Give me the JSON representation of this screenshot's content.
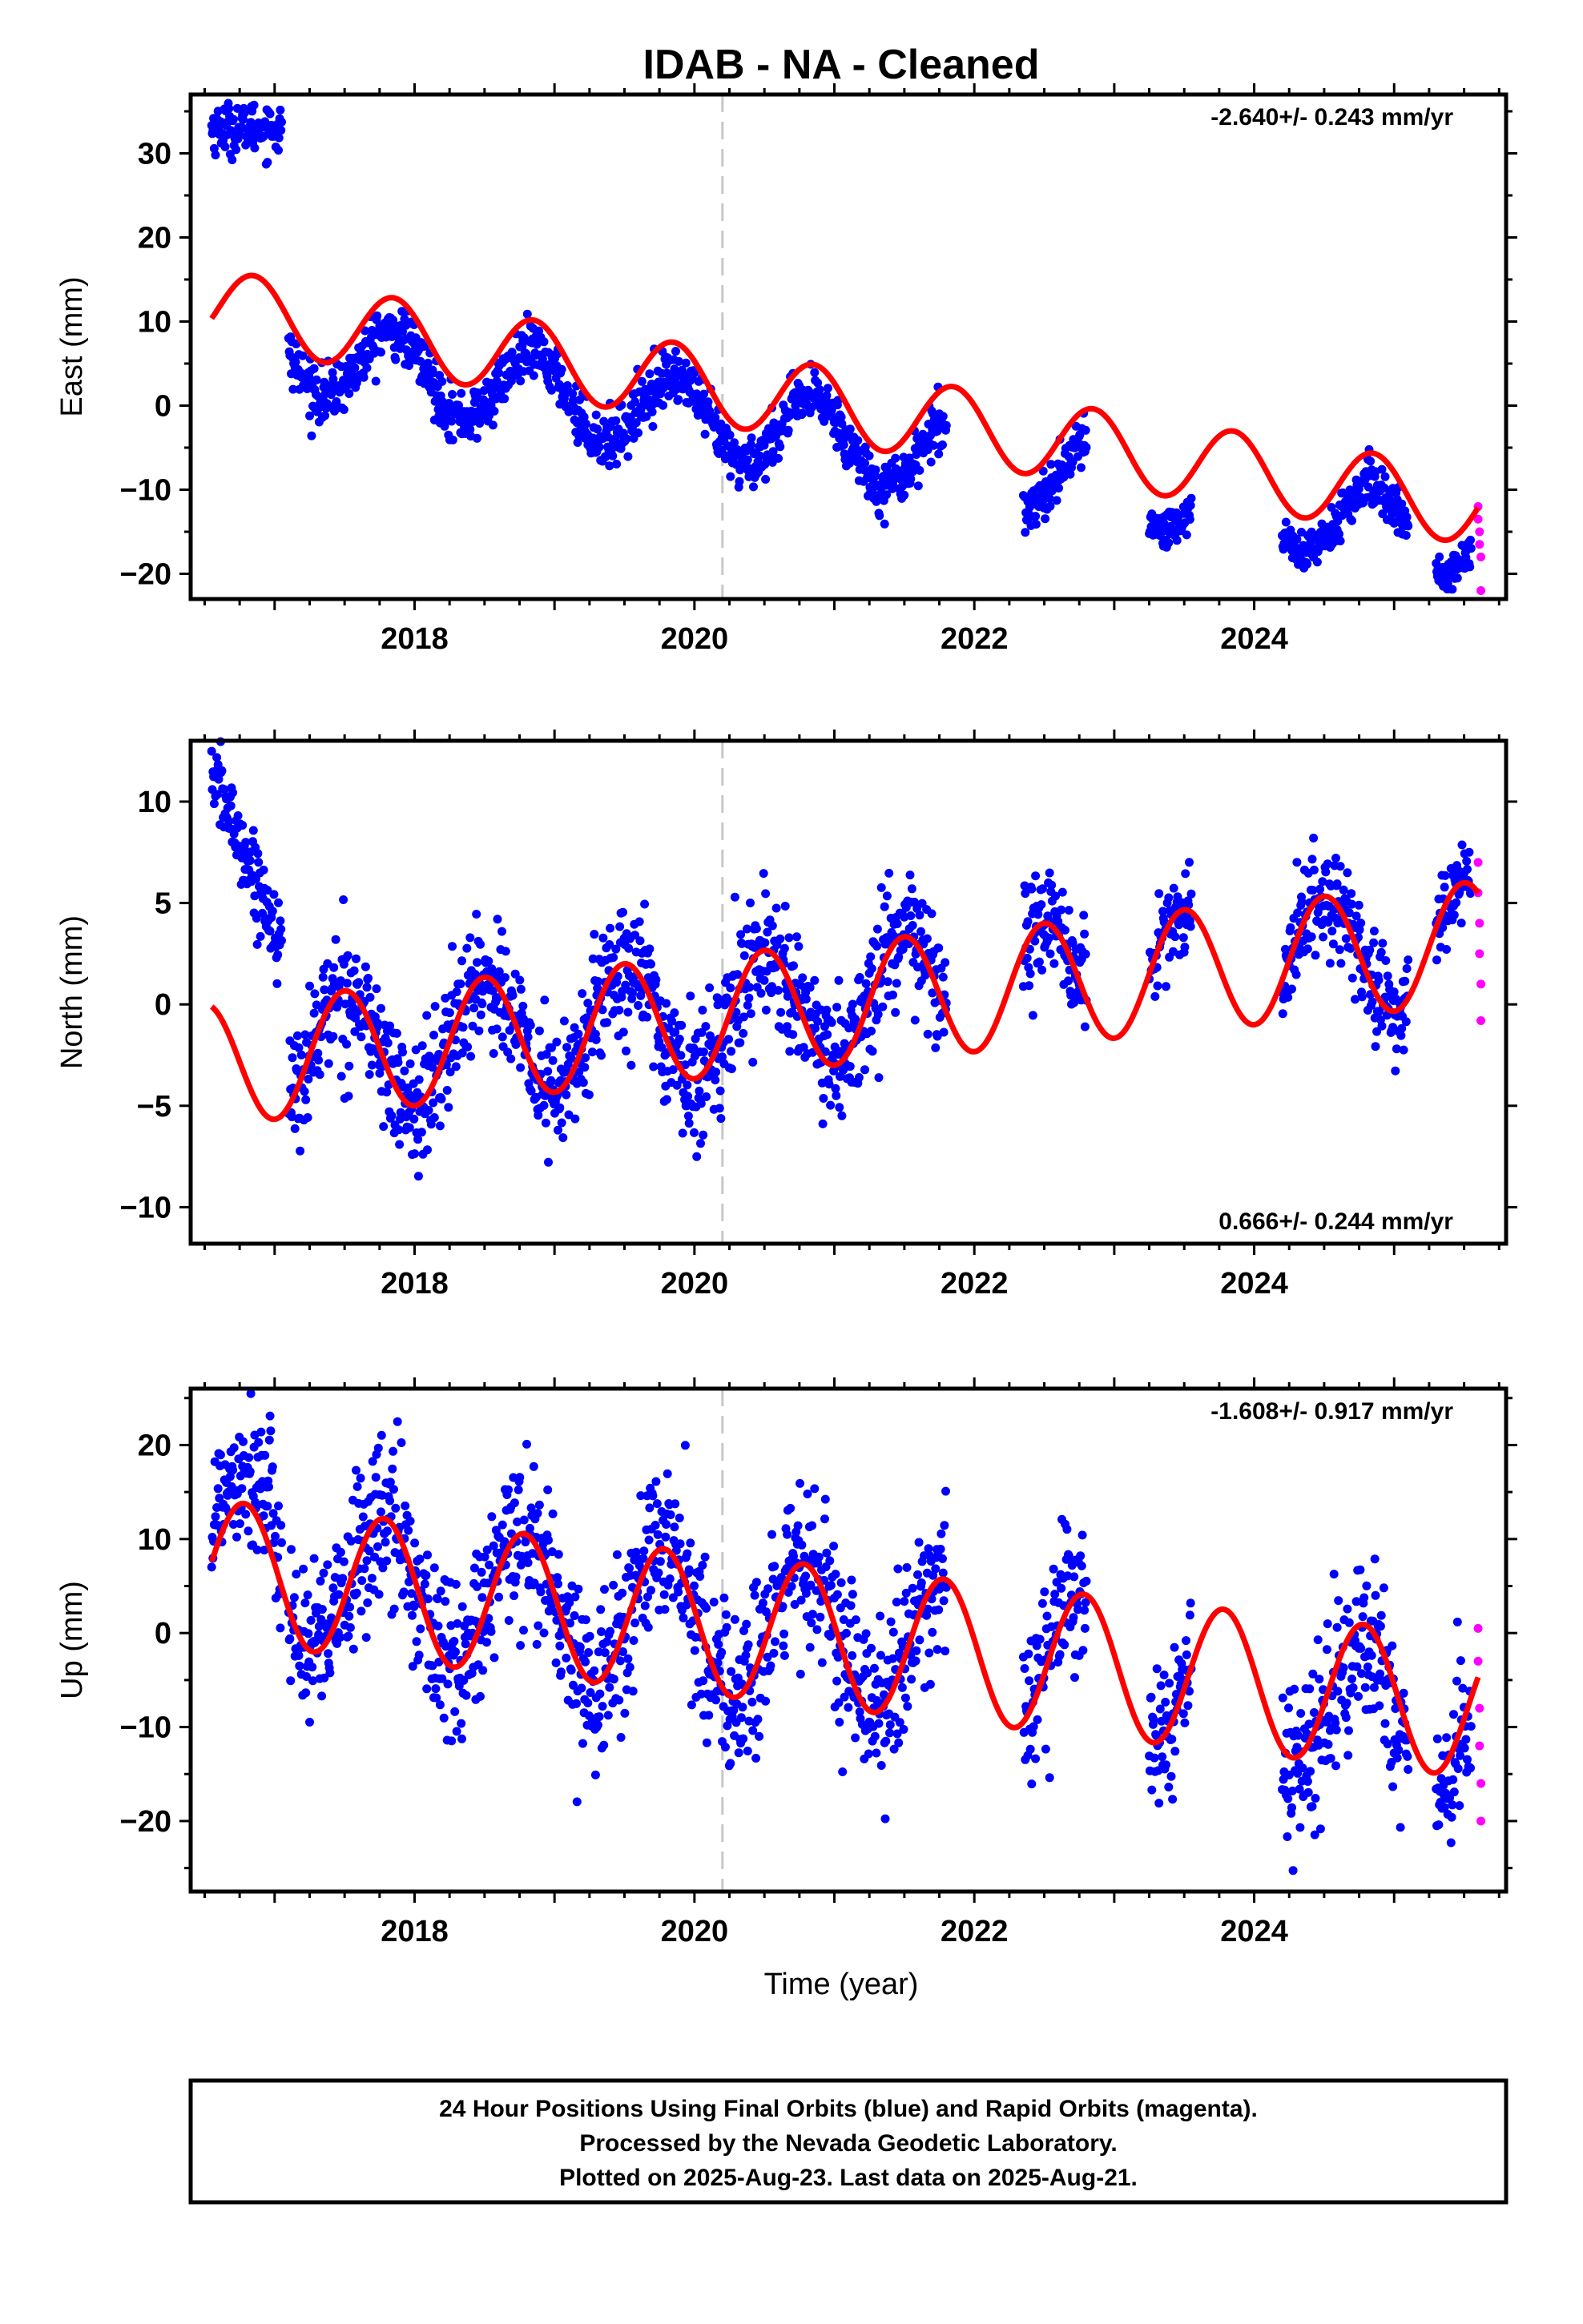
{
  "title": "IDAB  - NA - Cleaned",
  "xlabel": "Time (year)",
  "footer": [
    "24 Hour Positions Using Final Orbits (blue) and Rapid Orbits (magenta).",
    "Processed by the Nevada Geodetic Laboratory.",
    "Plotted on 2025-Aug-23. Last data on 2025-Aug-21."
  ],
  "colors": {
    "final": "#0000ff",
    "rapid": "#ff00ff",
    "model": "#ff0000",
    "event_line": "#c8c8c8"
  },
  "chart_data": [
    {
      "type": "scatter",
      "component": "East",
      "ylabel": "East (mm)",
      "rate_text": "-2.640+/- 0.243 mm/yr",
      "rate_position": "top-right",
      "xlim": [
        2016.4,
        2025.8
      ],
      "ylim": [
        -23,
        37
      ],
      "x_ticks": [
        2018,
        2020,
        2022,
        2024
      ],
      "y_ticks": [
        -20,
        -10,
        0,
        10,
        20,
        30
      ],
      "event_line_x": 2020.2,
      "trend": {
        "rate_mm_per_yr": -2.64,
        "value_at_2021": 0.0
      },
      "annual_signal": {
        "amplitude_mm": 4.5,
        "peak_year_fraction": 0.85
      },
      "data_segments": [
        {
          "from": 2016.55,
          "to": 2017.05,
          "level": 33.0,
          "scatter": 1.5,
          "orbit": "final"
        },
        {
          "from": 2017.1,
          "to": 2021.8,
          "offset": -4.0,
          "scatter": 1.6,
          "orbit": "final"
        },
        {
          "from": 2022.35,
          "to": 2022.8,
          "offset": -4.0,
          "scatter": 1.4,
          "orbit": "final"
        },
        {
          "from": 2023.25,
          "to": 2023.55,
          "offset": -4.0,
          "scatter": 1.2,
          "orbit": "final"
        },
        {
          "from": 2024.2,
          "to": 2025.1,
          "offset": -4.0,
          "scatter": 1.4,
          "orbit": "final"
        },
        {
          "from": 2025.3,
          "to": 2025.55,
          "offset": -4.0,
          "scatter": 1.2,
          "orbit": "final"
        }
      ],
      "rapid_points": [
        [
          2025.6,
          -12.0
        ],
        [
          2025.6,
          -13.5
        ],
        [
          2025.61,
          -15.0
        ],
        [
          2025.61,
          -16.5
        ],
        [
          2025.62,
          -18.0
        ],
        [
          2025.62,
          -22.0
        ]
      ]
    },
    {
      "type": "scatter",
      "component": "North",
      "ylabel": "North (mm)",
      "rate_text": "0.666+/- 0.244 mm/yr",
      "rate_position": "bottom-right",
      "xlim": [
        2016.4,
        2025.8
      ],
      "ylim": [
        -11.8,
        13
      ],
      "x_ticks": [
        2018,
        2020,
        2022,
        2024
      ],
      "y_ticks": [
        -10,
        -5,
        0,
        5,
        10
      ],
      "event_line_x": 2020.2,
      "trend": {
        "rate_mm_per_yr": 0.666,
        "value_at_2021": 0.0
      },
      "annual_signal": {
        "amplitude_mm": 3.0,
        "peak_year_fraction": 0.5
      },
      "data_segments": [
        {
          "from": 2016.55,
          "to": 2017.05,
          "start": 11.5,
          "end": 3.0,
          "scatter": 1.0,
          "orbit": "final"
        },
        {
          "from": 2017.1,
          "to": 2021.8,
          "offset": 0.0,
          "scatter": 1.6,
          "orbit": "final"
        },
        {
          "from": 2022.35,
          "to": 2022.8,
          "offset": 0.0,
          "scatter": 1.4,
          "orbit": "final"
        },
        {
          "from": 2023.25,
          "to": 2023.55,
          "offset": 0.0,
          "scatter": 1.0,
          "orbit": "final"
        },
        {
          "from": 2024.2,
          "to": 2025.1,
          "offset": 0.0,
          "scatter": 1.3,
          "orbit": "final"
        },
        {
          "from": 2025.3,
          "to": 2025.55,
          "offset": 0.0,
          "scatter": 1.0,
          "orbit": "final"
        }
      ],
      "rapid_points": [
        [
          2025.6,
          7.0
        ],
        [
          2025.6,
          5.5
        ],
        [
          2025.61,
          4.0
        ],
        [
          2025.61,
          2.5
        ],
        [
          2025.62,
          1.0
        ],
        [
          2025.62,
          -0.8
        ]
      ]
    },
    {
      "type": "scatter",
      "component": "Up",
      "ylabel": "Up (mm)",
      "rate_text": "-1.608+/- 0.917 mm/yr",
      "rate_position": "top-right",
      "xlim": [
        2016.4,
        2025.8
      ],
      "ylim": [
        -27.5,
        26
      ],
      "x_ticks": [
        2018,
        2020,
        2022,
        2024
      ],
      "y_ticks": [
        -20,
        -10,
        0,
        10,
        20
      ],
      "event_line_x": 2020.2,
      "trend": {
        "rate_mm_per_yr": -1.608,
        "value_at_2021": -0.5
      },
      "annual_signal": {
        "amplitude_mm": 7.5,
        "peak_year_fraction": 0.78
      },
      "data_segments": [
        {
          "from": 2016.55,
          "to": 2017.05,
          "offset": 4.0,
          "scatter": 4.0,
          "orbit": "final"
        },
        {
          "from": 2017.1,
          "to": 2021.8,
          "offset": 0.0,
          "scatter": 4.5,
          "orbit": "final"
        },
        {
          "from": 2022.35,
          "to": 2022.8,
          "offset": 1.0,
          "scatter": 4.0,
          "orbit": "final"
        },
        {
          "from": 2023.25,
          "to": 2023.55,
          "offset": 0.0,
          "scatter": 3.5,
          "orbit": "final"
        },
        {
          "from": 2024.2,
          "to": 2025.1,
          "offset": -2.0,
          "scatter": 4.5,
          "orbit": "final"
        },
        {
          "from": 2025.3,
          "to": 2025.55,
          "offset": -2.0,
          "scatter": 3.5,
          "orbit": "final"
        }
      ],
      "rapid_points": [
        [
          2025.6,
          0.5
        ],
        [
          2025.6,
          -3.0
        ],
        [
          2025.61,
          -8.0
        ],
        [
          2025.61,
          -12.0
        ],
        [
          2025.62,
          -16.0
        ],
        [
          2025.62,
          -20.0
        ]
      ]
    }
  ]
}
